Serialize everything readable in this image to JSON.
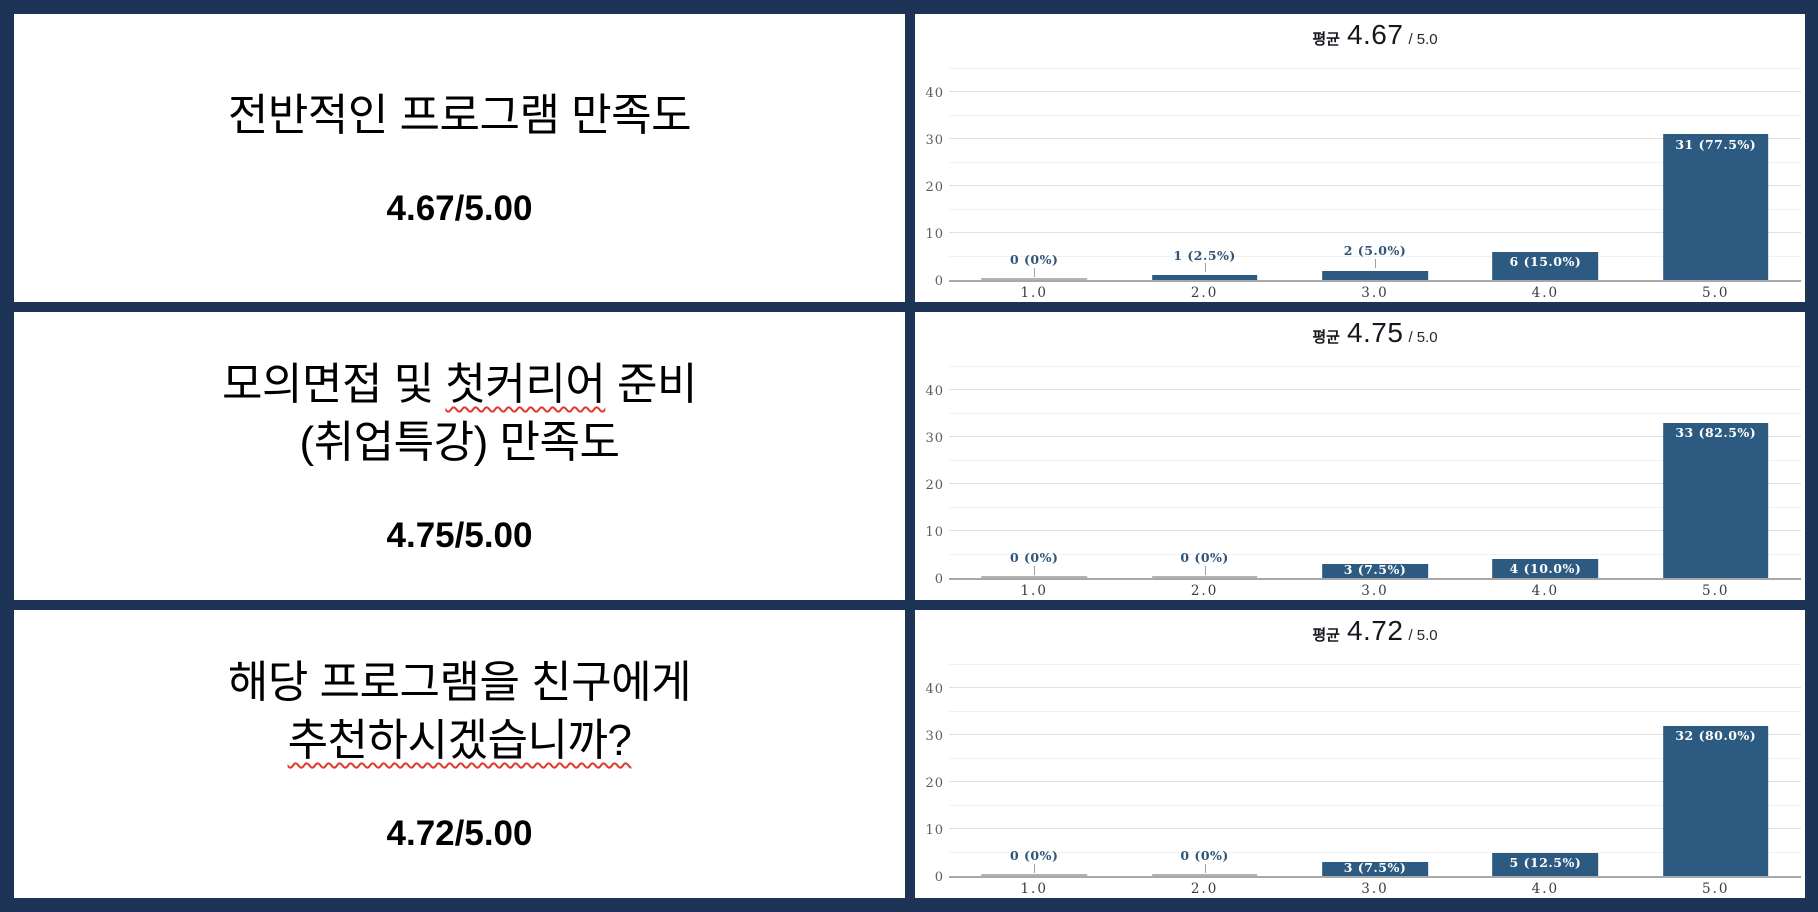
{
  "slide": {
    "frame_color": "#1e3456",
    "card_color": "#ffffff",
    "misspell_underline_color": "#e03a2b"
  },
  "rows": [
    {
      "question": {
        "lines": [
          [
            {
              "text": "전반적인 프로그램 만족도",
              "wavy": false
            }
          ]
        ],
        "score": "4.67/5.00"
      }
    },
    {
      "question": {
        "lines": [
          [
            {
              "text": "모의면접 및 ",
              "wavy": false
            },
            {
              "text": "첫커리어",
              "wavy": true
            },
            {
              "text": " 준비",
              "wavy": false
            }
          ],
          [
            {
              "text": "(취업특강) 만족도",
              "wavy": false
            }
          ]
        ],
        "score": "4.75/5.00"
      }
    },
    {
      "question": {
        "lines": [
          [
            {
              "text": "해당 프로그램을 친구에게",
              "wavy": false
            }
          ],
          [
            {
              "text": "추천하시겠습니까?",
              "wavy": true
            }
          ]
        ],
        "score": "4.72/5.00"
      }
    }
  ],
  "chart_data": [
    {
      "type": "bar",
      "title": "평균 4.67 / 5.0",
      "title_prefix": "평균",
      "mean": "4.67",
      "denominator": "/ 5.0",
      "categories": [
        "1.0",
        "2.0",
        "3.0",
        "4.0",
        "5.0"
      ],
      "values": [
        0,
        1,
        2,
        6,
        31
      ],
      "bar_labels": [
        "0 (0%)",
        "1 (2.5%)",
        "2 (5.0%)",
        "6 (15.0%)",
        "31 (77.5%)"
      ],
      "label_placement": [
        "above",
        "above",
        "above",
        "inside",
        "inside"
      ],
      "xlabel": "",
      "ylabel": "",
      "ylim": [
        0,
        45
      ],
      "yticks": [
        0,
        10,
        20,
        30,
        40
      ],
      "minor_gridlines": [
        5,
        15,
        25,
        35,
        45
      ],
      "grid": true,
      "legend": "none",
      "bar_color": "#2d5a80",
      "zero_bar_color": "#b3b3b3"
    },
    {
      "type": "bar",
      "title": "평균 4.75 / 5.0",
      "title_prefix": "평균",
      "mean": "4.75",
      "denominator": "/ 5.0",
      "categories": [
        "1.0",
        "2.0",
        "3.0",
        "4.0",
        "5.0"
      ],
      "values": [
        0,
        0,
        3,
        4,
        33
      ],
      "bar_labels": [
        "0 (0%)",
        "0 (0%)",
        "3 (7.5%)",
        "4 (10.0%)",
        "33 (82.5%)"
      ],
      "label_placement": [
        "above",
        "above",
        "inside",
        "inside",
        "inside"
      ],
      "xlabel": "",
      "ylabel": "",
      "ylim": [
        0,
        45
      ],
      "yticks": [
        0,
        10,
        20,
        30,
        40
      ],
      "minor_gridlines": [
        5,
        15,
        25,
        35,
        45
      ],
      "grid": true,
      "legend": "none",
      "bar_color": "#2d5a80",
      "zero_bar_color": "#b3b3b3"
    },
    {
      "type": "bar",
      "title": "평균 4.72 / 5.0",
      "title_prefix": "평균",
      "mean": "4.72",
      "denominator": "/ 5.0",
      "categories": [
        "1.0",
        "2.0",
        "3.0",
        "4.0",
        "5.0"
      ],
      "values": [
        0,
        0,
        3,
        5,
        32
      ],
      "bar_labels": [
        "0 (0%)",
        "0 (0%)",
        "3 (7.5%)",
        "5 (12.5%)",
        "32 (80.0%)"
      ],
      "label_placement": [
        "above",
        "above",
        "inside",
        "inside",
        "inside"
      ],
      "xlabel": "",
      "ylabel": "",
      "ylim": [
        0,
        45
      ],
      "yticks": [
        0,
        10,
        20,
        30,
        40
      ],
      "minor_gridlines": [
        5,
        15,
        25,
        35,
        45
      ],
      "grid": true,
      "legend": "none",
      "bar_color": "#2d5a80",
      "zero_bar_color": "#b3b3b3"
    }
  ]
}
